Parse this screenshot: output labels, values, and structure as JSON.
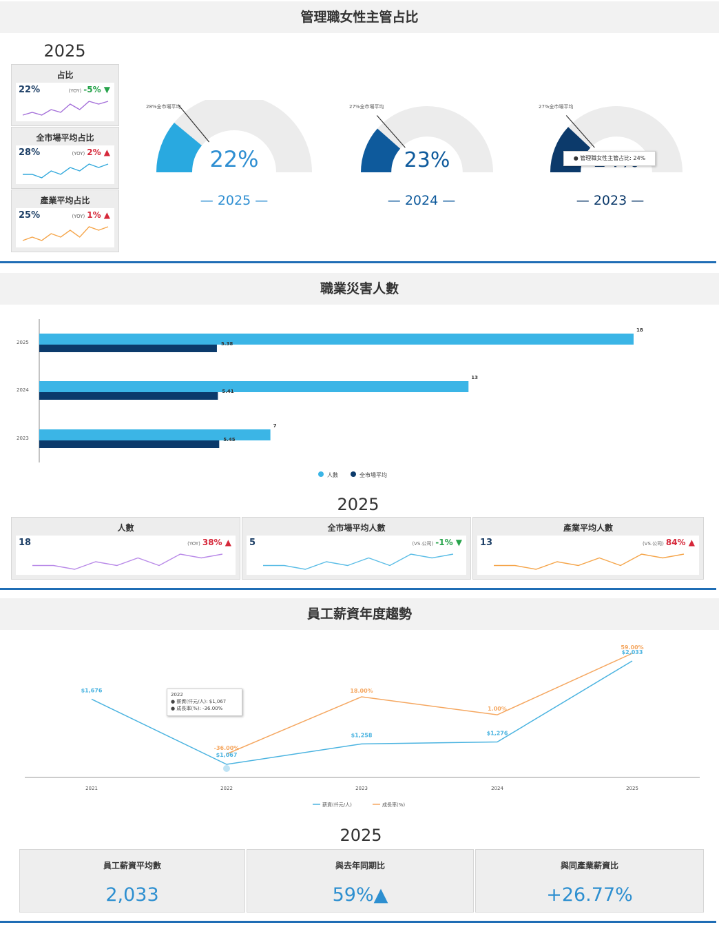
{
  "section1": {
    "title": "管理職女性主管占比",
    "year": "2025",
    "kpis": [
      {
        "label": "占比",
        "value": "22%",
        "yoy_tag": "(YOY)",
        "yoy": "-5%",
        "trend": "down",
        "color": "#a46fd9",
        "spark": [
          3,
          4,
          3,
          5,
          4,
          7,
          5,
          8,
          7,
          8
        ]
      },
      {
        "label": "全市場平均占比",
        "value": "28%",
        "yoy_tag": "(YOY)",
        "yoy": "2%",
        "trend": "up",
        "color": "#33a9dc",
        "spark": [
          2,
          2,
          1,
          3,
          2,
          4,
          3,
          5,
          4,
          5
        ]
      },
      {
        "label": "產業平均占比",
        "value": "25%",
        "yoy_tag": "(YOY)",
        "yoy": "1%",
        "trend": "up",
        "color": "#f5a54a",
        "spark": [
          2,
          3,
          2,
          4,
          3,
          5,
          3,
          6,
          5,
          6
        ]
      }
    ],
    "gauges": [
      {
        "value": "22%",
        "pct": 22,
        "ref_pct": 28,
        "ref_label": "28%全市場平均",
        "year_label": "— 2025 —",
        "fill": "#29a9e0"
      },
      {
        "value": "23%",
        "pct": 23,
        "ref_pct": 27,
        "ref_label": "27%全市場平均",
        "year_label": "— 2024 —",
        "fill": "#0e5a9c"
      },
      {
        "value": "24%",
        "pct": 24,
        "ref_pct": 27,
        "ref_label": "27%全市場平均",
        "year_label": "— 2023 —",
        "fill": "#0c3a6b"
      }
    ],
    "tooltip": "● 管理職女性主管占比: 24%"
  },
  "section2": {
    "title": "職業災害人數",
    "year": "2025",
    "chart_data": {
      "type": "bar",
      "orientation": "horizontal",
      "categories": [
        "2025",
        "2024",
        "2023"
      ],
      "series": [
        {
          "name": "人數",
          "values": [
            18,
            13,
            7
          ],
          "labels": [
            "18",
            "13",
            "7"
          ],
          "color": "#3bb5e6"
        },
        {
          "name": "全市場平均",
          "values": [
            5.38,
            5.41,
            5.45
          ],
          "labels": [
            "5.38",
            "5.41",
            "5.45"
          ],
          "color": "#0b3a6b"
        }
      ],
      "xlim": [
        0,
        18
      ],
      "legend": "bottom"
    },
    "kpis": [
      {
        "label": "人數",
        "value": "18",
        "tag": "(YOY)",
        "change": "38%",
        "trend": "up",
        "color": "#b98ae8",
        "spark": [
          3,
          3,
          2,
          4,
          3,
          5,
          3,
          6,
          5,
          6
        ]
      },
      {
        "label": "全市場平均人數",
        "value": "5",
        "tag": "(VS.公司)",
        "change": "-1%",
        "trend": "down",
        "color": "#5bbde6",
        "spark": [
          3,
          3,
          2,
          4,
          3,
          5,
          3,
          6,
          5,
          6
        ]
      },
      {
        "label": "產業平均人數",
        "value": "13",
        "tag": "(VS.公司)",
        "change": "84%",
        "trend": "up",
        "color": "#f5a54a",
        "spark": [
          3,
          3,
          2,
          4,
          3,
          5,
          3,
          6,
          5,
          6
        ]
      }
    ]
  },
  "section3": {
    "title": "員工薪資年度趨勢",
    "year": "2025",
    "chart_data": {
      "type": "line",
      "x": [
        "2021",
        "2022",
        "2023",
        "2024",
        "2025"
      ],
      "series": [
        {
          "name": "薪資(仟元/人)",
          "values": [
            1676,
            1067,
            1258,
            1276,
            2033
          ],
          "labels": [
            "$1,676",
            "$1,067",
            "$1,258",
            "$1,276",
            "$2,033"
          ],
          "color": "#4ab3e0"
        },
        {
          "name": "成長率(%)",
          "values": [
            null,
            -36.0,
            18.0,
            1.0,
            59.0
          ],
          "labels": [
            "",
            "-36.00%",
            "18.00%",
            "1.00%",
            "59.00%"
          ],
          "color": "#f5a760"
        }
      ],
      "legend": "bottom"
    },
    "tooltip": {
      "title": "2022",
      "line1": "● 薪資(仟元/人): $1,067",
      "line2": "● 成長率(%): -36.00%"
    },
    "cards": [
      {
        "label": "員工薪資平均數",
        "value": "2,033"
      },
      {
        "label": "與去年同期比",
        "value": "59%▲"
      },
      {
        "label": "與同產業薪資比",
        "value": "+26.77%"
      }
    ]
  }
}
